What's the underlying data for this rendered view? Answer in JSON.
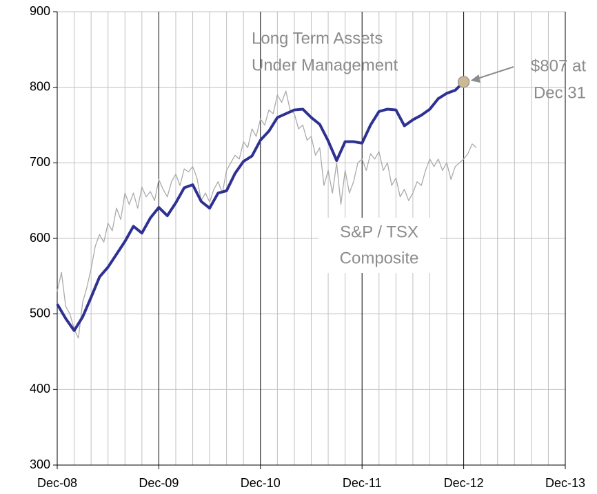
{
  "chart_data": {
    "type": "line",
    "annotations": [
      {
        "lines": [
          "Long Term Assets",
          "Under Management"
        ]
      },
      {
        "lines": [
          "S&P / TSX",
          "Composite"
        ]
      },
      {
        "lines": [
          "$807 at",
          "Dec 31"
        ]
      }
    ],
    "series": [
      {
        "name": "Long Term Assets Under Management",
        "color": "#2e3192",
        "x": [
          0,
          1,
          2,
          3,
          4,
          5,
          6,
          7,
          8,
          9,
          10,
          11,
          12,
          13,
          14,
          15,
          16,
          17,
          18,
          19,
          20,
          21,
          22,
          23,
          24,
          25,
          26,
          27,
          28,
          29,
          30,
          31,
          32,
          33,
          34,
          35,
          36,
          37,
          38,
          39,
          40,
          41,
          42,
          43,
          44,
          45,
          46,
          47,
          48
        ],
        "values": [
          513,
          494,
          478,
          496,
          522,
          549,
          562,
          579,
          596,
          616,
          607,
          627,
          641,
          630,
          647,
          667,
          671,
          649,
          640,
          660,
          663,
          686,
          702,
          709,
          730,
          742,
          760,
          765,
          770,
          771,
          760,
          751,
          729,
          703,
          728,
          728,
          726,
          750,
          768,
          771,
          770,
          749,
          757,
          763,
          771,
          785,
          792,
          796,
          807
        ]
      },
      {
        "name": "S&P / TSX Composite",
        "color": "#aaaaaa",
        "x": [
          0,
          0.5,
          1,
          1.5,
          2,
          2.5,
          3,
          3.5,
          4,
          4.5,
          5,
          5.5,
          6,
          6.5,
          7,
          7.5,
          8,
          8.5,
          9,
          9.5,
          10,
          10.5,
          11,
          11.5,
          12,
          12.5,
          13,
          13.5,
          14,
          14.5,
          15,
          15.5,
          16,
          16.5,
          17,
          17.5,
          18,
          18.5,
          19,
          19.5,
          20,
          20.5,
          21,
          21.5,
          22,
          22.5,
          23,
          23.5,
          24,
          24.5,
          25,
          25.5,
          26,
          26.5,
          27,
          27.5,
          28,
          28.5,
          29,
          29.5,
          30,
          30.5,
          31,
          31.5,
          32,
          32.5,
          33,
          33.5,
          34,
          34.5,
          35,
          35.5,
          36,
          36.5,
          37,
          37.5,
          38,
          38.5,
          39,
          39.5,
          40,
          40.5,
          41,
          41.5,
          42,
          42.5,
          43,
          43.5,
          44,
          44.5,
          45,
          45.5,
          46,
          46.5,
          47,
          47.5,
          48,
          48.5,
          49,
          49.5
        ],
        "values": [
          530,
          555,
          510,
          500,
          480,
          468,
          515,
          535,
          560,
          590,
          605,
          595,
          620,
          610,
          640,
          625,
          660,
          645,
          660,
          640,
          668,
          655,
          662,
          650,
          678,
          665,
          655,
          675,
          685,
          670,
          692,
          688,
          695,
          680,
          650,
          660,
          648,
          665,
          675,
          660,
          690,
          700,
          710,
          705,
          728,
          720,
          745,
          735,
          758,
          750,
          770,
          765,
          790,
          780,
          795,
          770,
          765,
          745,
          750,
          730,
          735,
          710,
          720,
          670,
          690,
          660,
          700,
          645,
          690,
          660,
          675,
          700,
          705,
          690,
          712,
          705,
          715,
          690,
          700,
          670,
          680,
          655,
          665,
          650,
          660,
          675,
          670,
          690,
          705,
          695,
          705,
          690,
          700,
          678,
          695,
          700,
          705,
          712,
          725,
          720
        ]
      }
    ],
    "xlim": [
      0,
      60
    ],
    "xticks": [
      {
        "value": 0,
        "label": "Dec-08"
      },
      {
        "value": 12,
        "label": "Dec-09"
      },
      {
        "value": 24,
        "label": "Dec-10"
      },
      {
        "value": 36,
        "label": "Dec-11"
      },
      {
        "value": 48,
        "label": "Dec-12"
      },
      {
        "value": 60,
        "label": "Dec-13"
      }
    ],
    "xgrid_minor": [
      2,
      4,
      6,
      8,
      10,
      14,
      16,
      18,
      20,
      22,
      26,
      28,
      30,
      32,
      34,
      38,
      40,
      42,
      44,
      46,
      50,
      52,
      54,
      56,
      58
    ],
    "ylim": [
      300,
      900
    ],
    "yticks": [
      300,
      400,
      500,
      600,
      700,
      800,
      900
    ],
    "grid": true
  }
}
